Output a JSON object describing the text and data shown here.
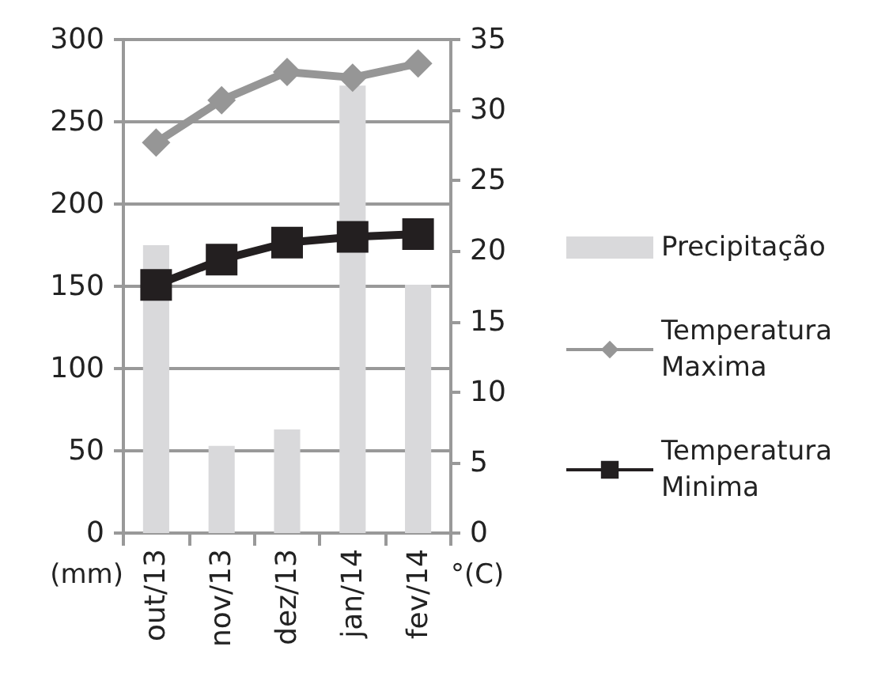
{
  "chart_data": {
    "type": "bar",
    "categories": [
      "out/13",
      "nov/13",
      "dez/13",
      "jan/14",
      "fev/14"
    ],
    "series": [
      {
        "name": "Precipitação",
        "color": "#d9d9db",
        "values": [
          175,
          53,
          63,
          272,
          151
        ]
      },
      {
        "name": "Temperatura Maxima",
        "type": "line",
        "axis": "y2",
        "color": "#969696",
        "marker": "diamond",
        "values": [
          27.7,
          30.7,
          32.7,
          32.3,
          33.3
        ]
      },
      {
        "name": "Temperatura Minima",
        "type": "line",
        "axis": "y2",
        "color": "#231f20",
        "marker": "square",
        "values": [
          17.6,
          19.4,
          20.6,
          21.0,
          21.2
        ]
      }
    ],
    "ylabel": "(mm)",
    "y2label": "°(C)",
    "ylim": [
      0,
      300
    ],
    "yticks": [
      0,
      50,
      100,
      150,
      200,
      250,
      300
    ],
    "y2lim": [
      0,
      35
    ],
    "y2ticks": [
      0,
      5,
      10,
      15,
      20,
      25,
      30,
      35
    ],
    "grid": "y",
    "legend": "right"
  }
}
